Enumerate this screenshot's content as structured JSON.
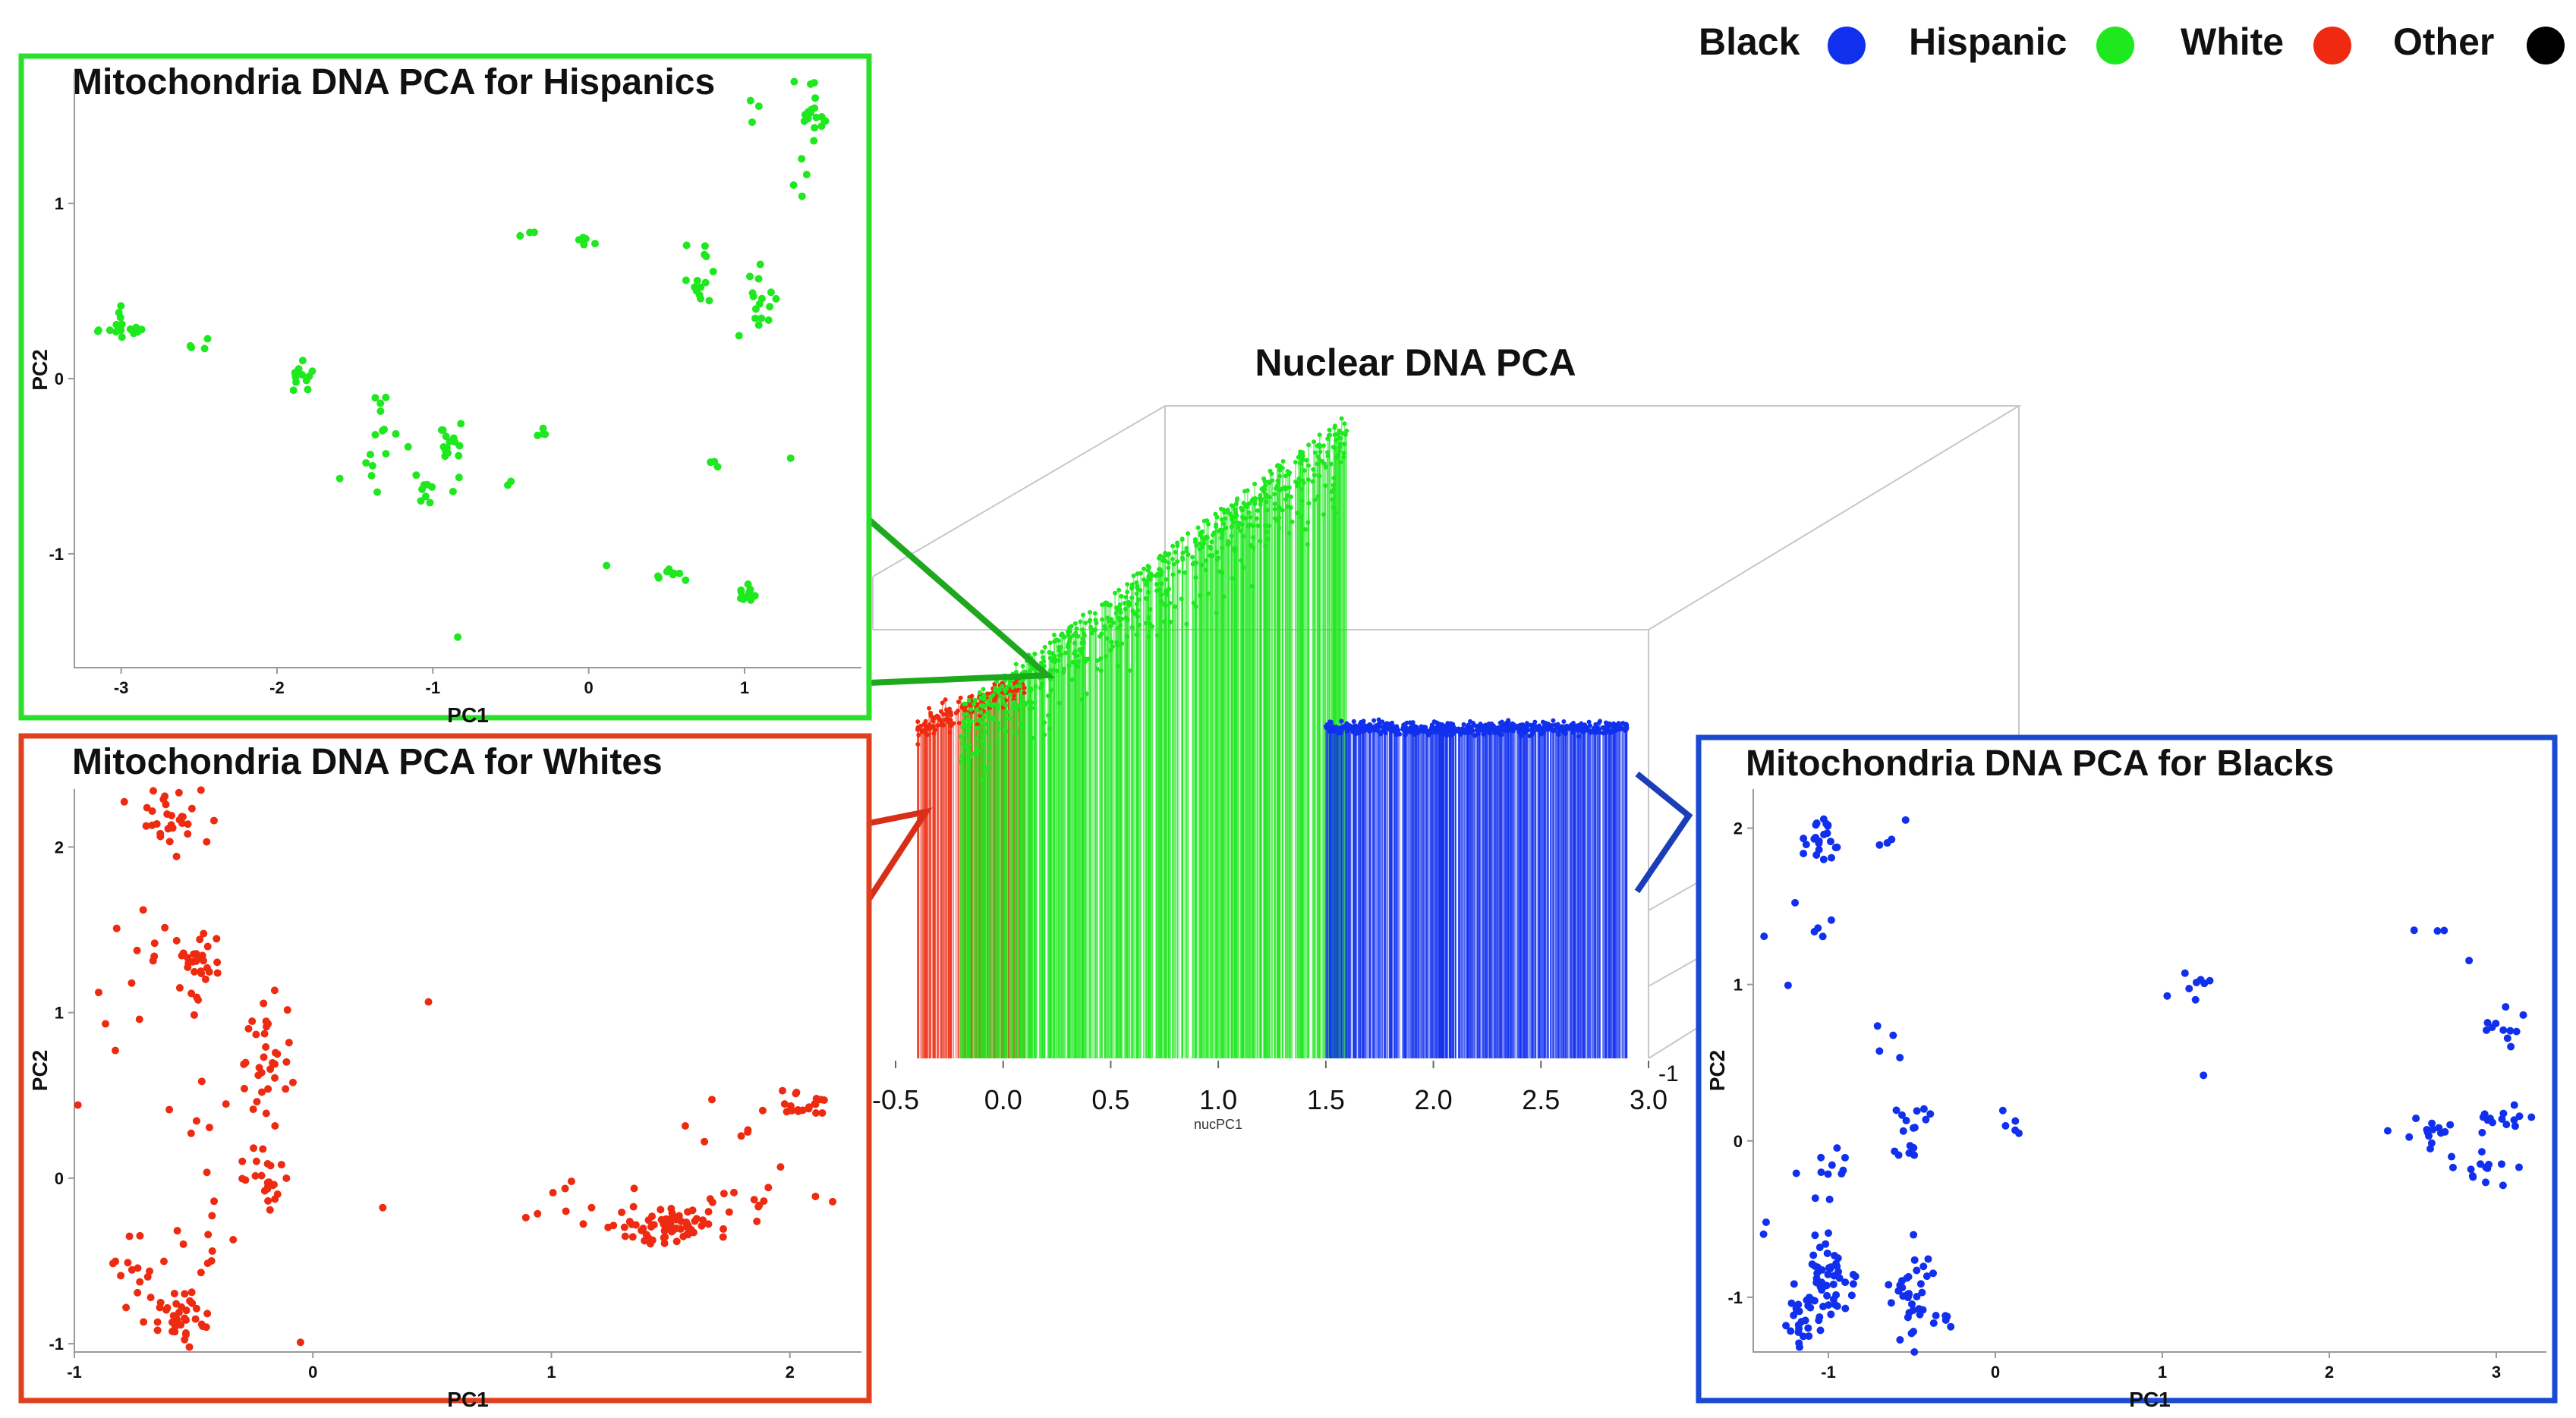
{
  "legend": {
    "items": [
      {
        "label": "Black",
        "color": "#1030ee"
      },
      {
        "label": "Hispanic",
        "color": "#1ee81e"
      },
      {
        "label": "White",
        "color": "#ee2a10"
      },
      {
        "label": "Other",
        "color": "#000000"
      }
    ]
  },
  "chart_data": [
    {
      "type": "scatter",
      "title": "Nuclear DNA PCA",
      "xlabel": "nucPC1",
      "xlim": [
        -0.5,
        3.0
      ],
      "xticks": [
        "-0.5",
        "0.0",
        "0.5",
        "1.0",
        "1.5",
        "2.0",
        "2.5",
        "3.0"
      ],
      "side_tick": "-1",
      "series": [
        {
          "name": "White",
          "color": "#ee2a10",
          "x_range": [
            -0.4,
            0.1
          ]
        },
        {
          "name": "Hispanic",
          "color": "#1ee81e",
          "x_range": [
            -0.2,
            1.6
          ]
        },
        {
          "name": "Black",
          "color": "#1030ee",
          "x_range": [
            1.5,
            2.9
          ]
        }
      ]
    },
    {
      "type": "scatter",
      "title": "Mitochondria DNA PCA for Hispanics",
      "xlabel": "PC1",
      "ylabel": "PC2",
      "xlim": [
        -3.3,
        1.75
      ],
      "ylim": [
        -1.65,
        1.75
      ],
      "xticks": [
        -3,
        -2,
        -1,
        0,
        1
      ],
      "yticks": [
        -1,
        0,
        1
      ],
      "color": "#1ee81e",
      "clusters": [
        {
          "x": -3.0,
          "y": 0.3,
          "n": 16,
          "sx": 0.1,
          "sy": 0.05
        },
        {
          "x": -2.5,
          "y": 0.2,
          "n": 4,
          "sx": 0.08,
          "sy": 0.03
        },
        {
          "x": -1.8,
          "y": 0.0,
          "n": 12,
          "sx": 0.06,
          "sy": 0.05
        },
        {
          "x": -1.35,
          "y": -0.35,
          "n": 16,
          "sx": 0.08,
          "sy": 0.15
        },
        {
          "x": -0.9,
          "y": -0.4,
          "n": 16,
          "sx": 0.05,
          "sy": 0.08
        },
        {
          "x": -1.05,
          "y": -0.65,
          "n": 8,
          "sx": 0.04,
          "sy": 0.06
        },
        {
          "x": -0.3,
          "y": -0.3,
          "n": 4,
          "sx": 0.02,
          "sy": 0.02
        },
        {
          "x": -0.4,
          "y": 0.85,
          "n": 3,
          "sx": 0.03,
          "sy": 0.02
        },
        {
          "x": 0.0,
          "y": 0.78,
          "n": 6,
          "sx": 0.05,
          "sy": 0.03
        },
        {
          "x": 0.75,
          "y": 0.7,
          "n": 6,
          "sx": 0.07,
          "sy": 0.05
        },
        {
          "x": 0.7,
          "y": 0.5,
          "n": 8,
          "sx": 0.05,
          "sy": 0.05
        },
        {
          "x": 1.1,
          "y": 0.45,
          "n": 16,
          "sx": 0.06,
          "sy": 0.12
        },
        {
          "x": 1.45,
          "y": 1.5,
          "n": 18,
          "sx": 0.05,
          "sy": 0.08
        },
        {
          "x": 1.35,
          "y": 1.15,
          "n": 4,
          "sx": 0.03,
          "sy": 0.05
        },
        {
          "x": 1.0,
          "y": -1.22,
          "n": 12,
          "sx": 0.03,
          "sy": 0.03
        },
        {
          "x": 0.55,
          "y": -1.1,
          "n": 8,
          "sx": 0.08,
          "sy": 0.03
        },
        {
          "x": 0.8,
          "y": -0.5,
          "n": 3,
          "sx": 0.02,
          "sy": 0.08
        },
        {
          "x": 0.1,
          "y": -1.05,
          "n": 1,
          "sx": 0.01,
          "sy": 0.01
        },
        {
          "x": -0.85,
          "y": -1.48,
          "n": 1,
          "sx": 0.01,
          "sy": 0.01
        },
        {
          "x": -0.5,
          "y": -0.65,
          "n": 2,
          "sx": 0.02,
          "sy": 0.05
        },
        {
          "x": 1.05,
          "y": 1.55,
          "n": 3,
          "sx": 0.03,
          "sy": 0.04
        },
        {
          "x": 1.3,
          "y": -0.45,
          "n": 1,
          "sx": 0.01,
          "sy": 0.01
        }
      ]
    },
    {
      "type": "scatter",
      "title": "Mitochondria DNA PCA for Whites",
      "xlabel": "PC1",
      "ylabel": "PC2",
      "xlim": [
        -1.0,
        2.3
      ],
      "ylim": [
        -1.05,
        2.35
      ],
      "xticks": [
        -1,
        0,
        1,
        2
      ],
      "yticks": [
        -1,
        0,
        1,
        2
      ],
      "color": "#ee2a10",
      "clusters": [
        {
          "x": -0.6,
          "y": 2.2,
          "n": 30,
          "sx": 0.06,
          "sy": 0.1
        },
        {
          "x": -0.5,
          "y": 1.3,
          "n": 30,
          "sx": 0.06,
          "sy": 0.12
        },
        {
          "x": -0.2,
          "y": 0.7,
          "n": 32,
          "sx": 0.06,
          "sy": 0.2
        },
        {
          "x": -0.2,
          "y": 0.0,
          "n": 24,
          "sx": 0.05,
          "sy": 0.1
        },
        {
          "x": -0.55,
          "y": -0.85,
          "n": 40,
          "sx": 0.08,
          "sy": 0.08
        },
        {
          "x": -0.75,
          "y": -0.6,
          "n": 14,
          "sx": 0.06,
          "sy": 0.1
        },
        {
          "x": -0.45,
          "y": -0.4,
          "n": 10,
          "sx": 0.08,
          "sy": 0.1
        },
        {
          "x": -0.75,
          "y": 1.1,
          "n": 10,
          "sx": 0.15,
          "sy": 0.4
        },
        {
          "x": -0.4,
          "y": 0.5,
          "n": 10,
          "sx": 0.1,
          "sy": 0.3
        },
        {
          "x": 1.5,
          "y": -0.3,
          "n": 60,
          "sx": 0.12,
          "sy": 0.05
        },
        {
          "x": 1.2,
          "y": -0.2,
          "n": 14,
          "sx": 0.2,
          "sy": 0.1
        },
        {
          "x": 1.85,
          "y": -0.15,
          "n": 14,
          "sx": 0.12,
          "sy": 0.08
        },
        {
          "x": 2.05,
          "y": 0.45,
          "n": 20,
          "sx": 0.06,
          "sy": 0.04
        },
        {
          "x": 1.7,
          "y": 0.25,
          "n": 6,
          "sx": 0.1,
          "sy": 0.1
        },
        {
          "x": 0.5,
          "y": 1.05,
          "n": 1,
          "sx": 0.01,
          "sy": 0.01
        },
        {
          "x": 0.3,
          "y": -0.18,
          "n": 1,
          "sx": 0.01,
          "sy": 0.01
        },
        {
          "x": -0.05,
          "y": -0.98,
          "n": 1,
          "sx": 0.01,
          "sy": 0.01
        },
        {
          "x": -0.9,
          "y": 1.05,
          "n": 2,
          "sx": 0.05,
          "sy": 0.1
        }
      ]
    },
    {
      "type": "scatter",
      "title": "Mitochondria DNA PCA for Blacks",
      "xlabel": "PC1",
      "ylabel": "PC2",
      "xlim": [
        -1.45,
        3.3
      ],
      "ylim": [
        -1.35,
        2.25
      ],
      "xticks": [
        -1,
        0,
        1,
        2,
        3
      ],
      "yticks": [
        -1,
        0,
        1,
        2
      ],
      "color": "#1030ee",
      "clusters": [
        {
          "x": -1.05,
          "y": 1.95,
          "n": 22,
          "sx": 0.06,
          "sy": 0.08
        },
        {
          "x": -0.65,
          "y": 1.95,
          "n": 4,
          "sx": 0.06,
          "sy": 0.06
        },
        {
          "x": -1.05,
          "y": 1.45,
          "n": 5,
          "sx": 0.08,
          "sy": 0.06
        },
        {
          "x": -0.6,
          "y": 0.65,
          "n": 4,
          "sx": 0.06,
          "sy": 0.06
        },
        {
          "x": -0.5,
          "y": 0.05,
          "n": 16,
          "sx": 0.07,
          "sy": 0.12
        },
        {
          "x": -1.0,
          "y": -0.2,
          "n": 10,
          "sx": 0.08,
          "sy": 0.12
        },
        {
          "x": -1.0,
          "y": -0.85,
          "n": 50,
          "sx": 0.08,
          "sy": 0.15
        },
        {
          "x": -1.15,
          "y": -1.15,
          "n": 24,
          "sx": 0.05,
          "sy": 0.08
        },
        {
          "x": -0.5,
          "y": -0.95,
          "n": 34,
          "sx": 0.06,
          "sy": 0.15
        },
        {
          "x": -0.3,
          "y": -1.15,
          "n": 6,
          "sx": 0.04,
          "sy": 0.03
        },
        {
          "x": 0.1,
          "y": 0.1,
          "n": 5,
          "sx": 0.05,
          "sy": 0.07
        },
        {
          "x": 1.2,
          "y": 1.0,
          "n": 8,
          "sx": 0.08,
          "sy": 0.04
        },
        {
          "x": 1.25,
          "y": 0.42,
          "n": 1,
          "sx": 0.01,
          "sy": 0.01
        },
        {
          "x": 2.6,
          "y": 0.05,
          "n": 14,
          "sx": 0.12,
          "sy": 0.04
        },
        {
          "x": 2.9,
          "y": -0.18,
          "n": 14,
          "sx": 0.12,
          "sy": 0.05
        },
        {
          "x": 3.05,
          "y": 0.15,
          "n": 14,
          "sx": 0.1,
          "sy": 0.05
        },
        {
          "x": 3.0,
          "y": 0.8,
          "n": 12,
          "sx": 0.07,
          "sy": 0.1
        },
        {
          "x": 2.65,
          "y": 1.35,
          "n": 3,
          "sx": 0.06,
          "sy": 0.02
        },
        {
          "x": -1.4,
          "y": 1.3,
          "n": 1,
          "sx": 0.01,
          "sy": 0.01
        },
        {
          "x": -1.25,
          "y": 1.0,
          "n": 1,
          "sx": 0.01,
          "sy": 0.01
        },
        {
          "x": -1.35,
          "y": -0.55,
          "n": 2,
          "sx": 0.03,
          "sy": 0.05
        }
      ]
    }
  ]
}
